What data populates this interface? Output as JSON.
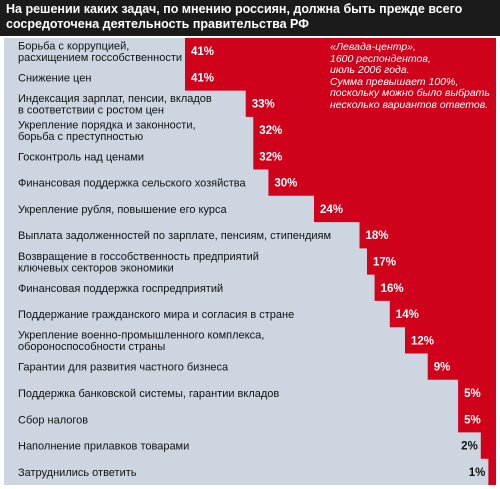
{
  "colors": {
    "accent": "#d0021b",
    "panel": "#cdd5e0",
    "title_bg": "#1b1b1b",
    "text": "#111111",
    "value_text": "#ffffff"
  },
  "note": "«Левада-центр»,\n1600 респондентов,\nиюль 2006 года.\nСумма превышает 100%,\nпоскольку можно было выбрать\nнесколько вариантов ответов.",
  "chart_data": {
    "type": "bar",
    "orientation": "horizontal",
    "title": "На решении каких задач, по мнению россиян, должна быть прежде всего сосредоточена деятельность правительства РФ",
    "xlabel": "",
    "ylabel": "",
    "unit": "%",
    "xlim": [
      0,
      41
    ],
    "grid": false,
    "legend": "none",
    "categories": [
      "Борьба с коррупцией,\nрасхищением госсобственности",
      "Снижение цен",
      "Индексация зарплат, пенсии, вкладов\nв соответствии с ростом цен",
      "Укрепление порядка и законности,\nборьба с преступностью",
      "Госконтроль над ценами",
      "Финансовая поддержка сельского хозяйства",
      "Укрепление рубля, повышение его курса",
      "Выплата задолженностей по зарплате, пенсиям, стипендиям",
      "Возвращение в госсобственность предприятий\nключевых секторов экономики",
      "Финансовая поддержка госпредприятий",
      "Поддержание гражданского мира и согласия в стране",
      "Укрепление военно-промышленного комплекса,\nобороноспособности страны",
      "Гарантии для развития частного бизнеса",
      "Поддержка банковской системы, гарантии вкладов",
      "Сбор налогов",
      "Наполнение прилавков товарами",
      "Затруднились ответить"
    ],
    "values": [
      41,
      41,
      33,
      32,
      32,
      30,
      24,
      18,
      17,
      16,
      14,
      12,
      9,
      5,
      5,
      2,
      1
    ],
    "data_labels": [
      "41%",
      "41%",
      "33%",
      "32%",
      "32%",
      "30%",
      "24%",
      "18%",
      "17%",
      "16%",
      "14%",
      "12%",
      "9%",
      "5%",
      "5%",
      "2%",
      "1%"
    ]
  }
}
